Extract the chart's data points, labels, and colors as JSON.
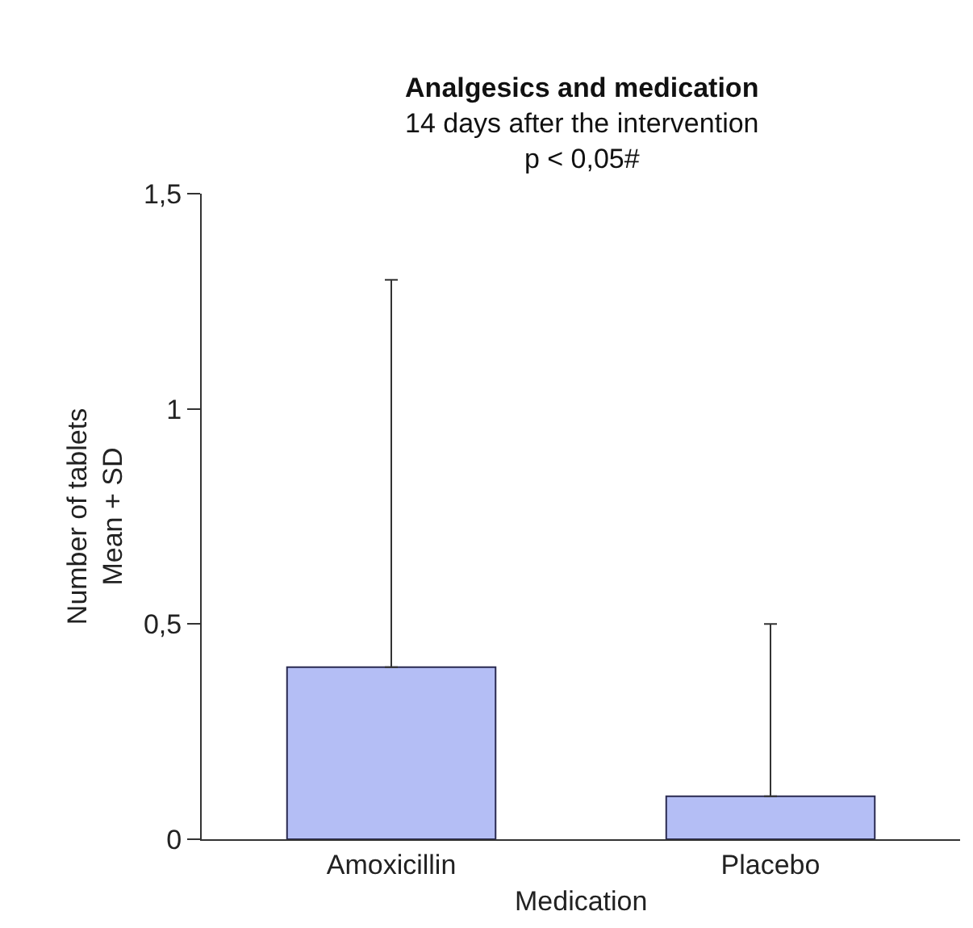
{
  "chart_data": {
    "type": "bar",
    "title": "Analgesics and medication",
    "subtitle": "14 days after the intervention\np < 0,05#",
    "xlabel": "Medication",
    "ylabel": "Number of tablets\nMean + SD",
    "categories": [
      "Amoxicillin",
      "Placebo"
    ],
    "values": [
      0.4,
      0.1
    ],
    "color": "#b4bef5",
    "errors": [
      [
        0.4,
        1.3
      ],
      [
        0.1,
        0.5
      ]
    ],
    "ylim": [
      0,
      1.5
    ],
    "yticks": [
      0,
      {
        "value": 0.5,
        "label": "0,5"
      },
      1,
      {
        "value": 1.5,
        "label": "1,5"
      }
    ],
    "legend": false
  }
}
